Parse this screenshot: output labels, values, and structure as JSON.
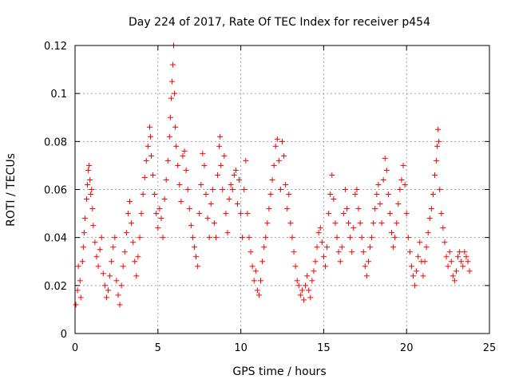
{
  "chart_data": {
    "type": "scatter",
    "title": "Day 224 of 2017, Rate Of TEC Index for receiver p454",
    "xlabel": "GPS time / hours",
    "ylabel": "ROTI / TECUs",
    "xlim": [
      0,
      25
    ],
    "ylim": [
      0,
      0.12
    ],
    "xticks": [
      0,
      5,
      10,
      15,
      20,
      25
    ],
    "xtick_labels": [
      "0",
      "5",
      "10",
      "15",
      "20",
      "25"
    ],
    "yticks": [
      0,
      0.02,
      0.04,
      0.06,
      0.08,
      0.1,
      0.12
    ],
    "ytick_labels": [
      "0",
      "0.02",
      "0.04",
      "0.06",
      "0.08",
      "0.1",
      "0.12"
    ],
    "grid": true,
    "marker": "+",
    "color": "#ff0000",
    "series": [
      {
        "name": "ROTI",
        "points": [
          [
            0.05,
            0.012
          ],
          [
            0.15,
            0.018
          ],
          [
            0.2,
            0.028
          ],
          [
            0.3,
            0.022
          ],
          [
            0.35,
            0.015
          ],
          [
            0.45,
            0.03
          ],
          [
            0.5,
            0.036
          ],
          [
            0.55,
            0.042
          ],
          [
            0.6,
            0.048
          ],
          [
            0.7,
            0.056
          ],
          [
            0.75,
            0.062
          ],
          [
            0.8,
            0.068
          ],
          [
            0.85,
            0.07
          ],
          [
            0.9,
            0.064
          ],
          [
            0.95,
            0.058
          ],
          [
            1.0,
            0.06
          ],
          [
            1.05,
            0.052
          ],
          [
            1.1,
            0.045
          ],
          [
            1.2,
            0.038
          ],
          [
            1.3,
            0.032
          ],
          [
            1.4,
            0.028
          ],
          [
            1.5,
            0.035
          ],
          [
            1.6,
            0.04
          ],
          [
            1.7,
            0.025
          ],
          [
            1.8,
            0.02
          ],
          [
            1.9,
            0.015
          ],
          [
            2.0,
            0.018
          ],
          [
            2.1,
            0.024
          ],
          [
            2.2,
            0.03
          ],
          [
            2.3,
            0.036
          ],
          [
            2.4,
            0.04
          ],
          [
            2.5,
            0.022
          ],
          [
            2.6,
            0.016
          ],
          [
            2.7,
            0.012
          ],
          [
            2.8,
            0.02
          ],
          [
            2.9,
            0.028
          ],
          [
            3.0,
            0.034
          ],
          [
            3.1,
            0.042
          ],
          [
            3.2,
            0.05
          ],
          [
            3.3,
            0.055
          ],
          [
            3.4,
            0.046
          ],
          [
            3.5,
            0.038
          ],
          [
            3.6,
            0.03
          ],
          [
            3.7,
            0.024
          ],
          [
            3.8,
            0.032
          ],
          [
            3.9,
            0.04
          ],
          [
            4.0,
            0.05
          ],
          [
            4.1,
            0.058
          ],
          [
            4.2,
            0.065
          ],
          [
            4.3,
            0.072
          ],
          [
            4.4,
            0.078
          ],
          [
            4.5,
            0.086
          ],
          [
            4.55,
            0.082
          ],
          [
            4.6,
            0.074
          ],
          [
            4.7,
            0.066
          ],
          [
            4.8,
            0.058
          ],
          [
            4.9,
            0.05
          ],
          [
            5.0,
            0.044
          ],
          [
            5.1,
            0.052
          ],
          [
            5.2,
            0.048
          ],
          [
            5.3,
            0.04
          ],
          [
            5.4,
            0.056
          ],
          [
            5.5,
            0.064
          ],
          [
            5.6,
            0.072
          ],
          [
            5.7,
            0.082
          ],
          [
            5.75,
            0.09
          ],
          [
            5.8,
            0.098
          ],
          [
            5.85,
            0.105
          ],
          [
            5.9,
            0.112
          ],
          [
            5.95,
            0.12
          ],
          [
            6.0,
            0.1
          ],
          [
            6.05,
            0.086
          ],
          [
            6.1,
            0.078
          ],
          [
            6.2,
            0.07
          ],
          [
            6.3,
            0.062
          ],
          [
            6.4,
            0.055
          ],
          [
            6.5,
            0.074
          ],
          [
            6.6,
            0.076
          ],
          [
            6.7,
            0.068
          ],
          [
            6.8,
            0.06
          ],
          [
            6.9,
            0.052
          ],
          [
            7.0,
            0.045
          ],
          [
            7.1,
            0.04
          ],
          [
            7.2,
            0.036
          ],
          [
            7.3,
            0.032
          ],
          [
            7.4,
            0.028
          ],
          [
            7.5,
            0.05
          ],
          [
            7.6,
            0.062
          ],
          [
            7.7,
            0.075
          ],
          [
            7.8,
            0.07
          ],
          [
            7.9,
            0.058
          ],
          [
            8.0,
            0.048
          ],
          [
            8.1,
            0.04
          ],
          [
            8.2,
            0.054
          ],
          [
            8.3,
            0.06
          ],
          [
            8.4,
            0.046
          ],
          [
            8.5,
            0.04
          ],
          [
            8.6,
            0.066
          ],
          [
            8.7,
            0.078
          ],
          [
            8.75,
            0.082
          ],
          [
            8.8,
            0.07
          ],
          [
            8.9,
            0.06
          ],
          [
            9.0,
            0.074
          ],
          [
            9.1,
            0.05
          ],
          [
            9.2,
            0.042
          ],
          [
            9.3,
            0.056
          ],
          [
            9.4,
            0.062
          ],
          [
            9.5,
            0.06
          ],
          [
            9.6,
            0.066
          ],
          [
            9.7,
            0.068
          ],
          [
            9.8,
            0.054
          ],
          [
            9.9,
            0.064
          ],
          [
            10.0,
            0.05
          ],
          [
            10.1,
            0.04
          ],
          [
            10.2,
            0.06
          ],
          [
            10.3,
            0.072
          ],
          [
            10.4,
            0.05
          ],
          [
            10.5,
            0.04
          ],
          [
            10.6,
            0.034
          ],
          [
            10.7,
            0.028
          ],
          [
            10.8,
            0.022
          ],
          [
            10.9,
            0.026
          ],
          [
            11.0,
            0.018
          ],
          [
            11.1,
            0.016
          ],
          [
            11.2,
            0.022
          ],
          [
            11.3,
            0.03
          ],
          [
            11.4,
            0.036
          ],
          [
            11.5,
            0.04
          ],
          [
            11.6,
            0.046
          ],
          [
            11.7,
            0.052
          ],
          [
            11.8,
            0.058
          ],
          [
            11.9,
            0.064
          ],
          [
            12.0,
            0.07
          ],
          [
            12.1,
            0.078
          ],
          [
            12.2,
            0.081
          ],
          [
            12.3,
            0.072
          ],
          [
            12.4,
            0.06
          ],
          [
            12.5,
            0.08
          ],
          [
            12.6,
            0.074
          ],
          [
            12.7,
            0.062
          ],
          [
            12.8,
            0.052
          ],
          [
            12.9,
            0.058
          ],
          [
            13.0,
            0.046
          ],
          [
            13.1,
            0.04
          ],
          [
            13.2,
            0.034
          ],
          [
            13.3,
            0.028
          ],
          [
            13.4,
            0.022
          ],
          [
            13.5,
            0.02
          ],
          [
            13.6,
            0.016
          ],
          [
            13.7,
            0.018
          ],
          [
            13.8,
            0.014
          ],
          [
            13.9,
            0.02
          ],
          [
            14.0,
            0.024
          ],
          [
            14.1,
            0.018
          ],
          [
            14.2,
            0.015
          ],
          [
            14.3,
            0.022
          ],
          [
            14.4,
            0.026
          ],
          [
            14.5,
            0.03
          ],
          [
            14.6,
            0.036
          ],
          [
            14.7,
            0.042
          ],
          [
            14.8,
            0.044
          ],
          [
            14.9,
            0.038
          ],
          [
            15.0,
            0.032
          ],
          [
            15.1,
            0.028
          ],
          [
            15.2,
            0.036
          ],
          [
            15.3,
            0.05
          ],
          [
            15.4,
            0.058
          ],
          [
            15.5,
            0.066
          ],
          [
            15.6,
            0.056
          ],
          [
            15.7,
            0.046
          ],
          [
            15.8,
            0.04
          ],
          [
            15.9,
            0.034
          ],
          [
            16.0,
            0.03
          ],
          [
            16.1,
            0.036
          ],
          [
            16.2,
            0.05
          ],
          [
            16.3,
            0.06
          ],
          [
            16.4,
            0.052
          ],
          [
            16.5,
            0.046
          ],
          [
            16.6,
            0.04
          ],
          [
            16.7,
            0.034
          ],
          [
            16.8,
            0.044
          ],
          [
            16.9,
            0.058
          ],
          [
            17.0,
            0.06
          ],
          [
            17.1,
            0.052
          ],
          [
            17.2,
            0.046
          ],
          [
            17.3,
            0.04
          ],
          [
            17.4,
            0.034
          ],
          [
            17.5,
            0.028
          ],
          [
            17.6,
            0.024
          ],
          [
            17.7,
            0.03
          ],
          [
            17.8,
            0.036
          ],
          [
            17.9,
            0.04
          ],
          [
            18.0,
            0.046
          ],
          [
            18.1,
            0.052
          ],
          [
            18.2,
            0.058
          ],
          [
            18.3,
            0.062
          ],
          [
            18.4,
            0.054
          ],
          [
            18.5,
            0.046
          ],
          [
            18.6,
            0.064
          ],
          [
            18.7,
            0.073
          ],
          [
            18.8,
            0.068
          ],
          [
            18.9,
            0.058
          ],
          [
            19.0,
            0.05
          ],
          [
            19.1,
            0.042
          ],
          [
            19.2,
            0.036
          ],
          [
            19.3,
            0.04
          ],
          [
            19.4,
            0.046
          ],
          [
            19.5,
            0.054
          ],
          [
            19.6,
            0.06
          ],
          [
            19.7,
            0.064
          ],
          [
            19.8,
            0.07
          ],
          [
            19.9,
            0.062
          ],
          [
            20.0,
            0.05
          ],
          [
            20.1,
            0.04
          ],
          [
            20.2,
            0.034
          ],
          [
            20.3,
            0.028
          ],
          [
            20.4,
            0.024
          ],
          [
            20.5,
            0.02
          ],
          [
            20.6,
            0.026
          ],
          [
            20.7,
            0.032
          ],
          [
            20.8,
            0.038
          ],
          [
            20.9,
            0.03
          ],
          [
            21.0,
            0.024
          ],
          [
            21.1,
            0.03
          ],
          [
            21.2,
            0.036
          ],
          [
            21.3,
            0.042
          ],
          [
            21.4,
            0.048
          ],
          [
            21.5,
            0.052
          ],
          [
            21.6,
            0.058
          ],
          [
            21.7,
            0.066
          ],
          [
            21.8,
            0.072
          ],
          [
            21.85,
            0.078
          ],
          [
            21.9,
            0.085
          ],
          [
            21.95,
            0.08
          ],
          [
            22.0,
            0.06
          ],
          [
            22.1,
            0.05
          ],
          [
            22.2,
            0.044
          ],
          [
            22.3,
            0.038
          ],
          [
            22.4,
            0.032
          ],
          [
            22.5,
            0.028
          ],
          [
            22.6,
            0.034
          ],
          [
            22.7,
            0.03
          ],
          [
            22.8,
            0.024
          ],
          [
            22.9,
            0.022
          ],
          [
            23.0,
            0.026
          ],
          [
            23.1,
            0.032
          ],
          [
            23.2,
            0.034
          ],
          [
            23.3,
            0.03
          ],
          [
            23.4,
            0.028
          ],
          [
            23.5,
            0.034
          ],
          [
            23.6,
            0.032
          ],
          [
            23.7,
            0.03
          ],
          [
            23.8,
            0.026
          ]
        ]
      }
    ]
  }
}
